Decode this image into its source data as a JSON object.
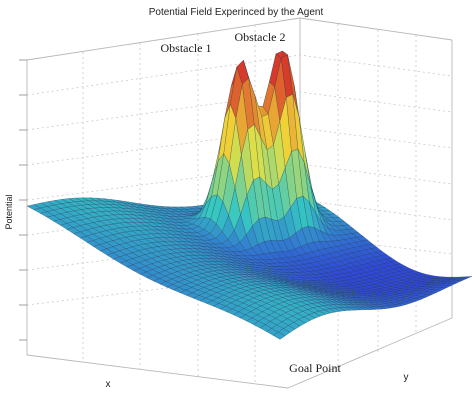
{
  "chart_data": {
    "type": "surface",
    "title": "Potential Field Experinced by the Agent",
    "xlabel": "x",
    "ylabel": "y",
    "zlabel": "Potential",
    "grid": true,
    "colormap": "jet",
    "annotations": [
      {
        "text": "Obstacle 1",
        "target": "left peak"
      },
      {
        "text": "Obstacle 2",
        "target": "right peak"
      },
      {
        "text": "Goal Point",
        "target": "surface minimum"
      }
    ],
    "colors": {
      "peak": "#d63a2a",
      "high": "#f2e23a",
      "mid": "#35c7c2",
      "low": "#2f49d8"
    }
  }
}
